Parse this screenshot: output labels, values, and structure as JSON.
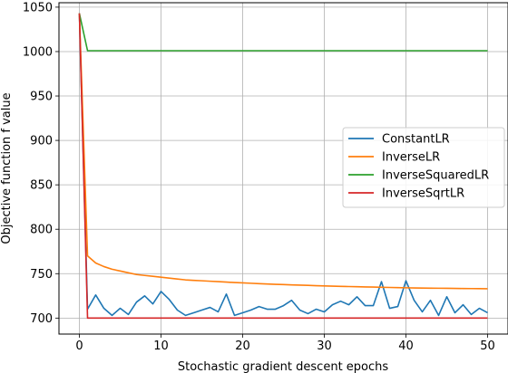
{
  "chart_data": {
    "type": "line",
    "title": "",
    "xlabel": "Stochastic gradient descent epochs",
    "ylabel": "Objective function f value",
    "xlim": [
      -2.5,
      52.5
    ],
    "ylim": [
      682,
      1055
    ],
    "xticks": [
      0,
      10,
      20,
      30,
      40,
      50
    ],
    "yticks": [
      700,
      750,
      800,
      850,
      900,
      950,
      1000,
      1050
    ],
    "grid": true,
    "legend_position": "center-right",
    "x": [
      0,
      1,
      2,
      3,
      4,
      5,
      6,
      7,
      8,
      9,
      10,
      11,
      12,
      13,
      14,
      15,
      16,
      17,
      18,
      19,
      20,
      21,
      22,
      23,
      24,
      25,
      26,
      27,
      28,
      29,
      30,
      31,
      32,
      33,
      34,
      35,
      36,
      37,
      38,
      39,
      40,
      41,
      42,
      43,
      44,
      45,
      46,
      47,
      48,
      49,
      50
    ],
    "series": [
      {
        "name": "ConstantLR",
        "color": "#1f77b4",
        "values": [
          1043,
          710,
          726,
          711,
          703,
          711,
          704,
          718,
          725,
          716,
          730,
          721,
          709,
          703,
          706,
          709,
          712,
          707,
          727,
          703,
          706,
          709,
          713,
          710,
          710,
          714,
          720,
          709,
          705,
          710,
          707,
          715,
          719,
          715,
          724,
          714,
          714,
          741,
          711,
          713,
          742,
          720,
          707,
          720,
          703,
          724,
          706,
          715,
          704,
          711,
          706
        ]
      },
      {
        "name": "InverseLR",
        "color": "#ff7f0e",
        "values": [
          1043,
          770,
          762,
          758,
          755,
          753,
          751,
          749,
          748,
          747,
          746,
          745,
          744,
          743,
          742.5,
          742,
          741.5,
          741,
          740.5,
          740,
          739.6,
          739.2,
          738.8,
          738.4,
          738,
          737.7,
          737.4,
          737.1,
          736.8,
          736.5,
          736.2,
          735.9,
          735.7,
          735.5,
          735.3,
          735.1,
          734.9,
          734.7,
          734.5,
          734.3,
          734.1,
          733.9,
          733.8,
          733.7,
          733.6,
          733.5,
          733.4,
          733.3,
          733.2,
          733.1,
          733
        ]
      },
      {
        "name": "InverseSquaredLR",
        "color": "#2ca02c",
        "values": [
          1043,
          1001,
          1001,
          1001,
          1001,
          1001,
          1001,
          1001,
          1001,
          1001,
          1001,
          1001,
          1001,
          1001,
          1001,
          1001,
          1001,
          1001,
          1001,
          1001,
          1001,
          1001,
          1001,
          1001,
          1001,
          1001,
          1001,
          1001,
          1001,
          1001,
          1001,
          1001,
          1001,
          1001,
          1001,
          1001,
          1001,
          1001,
          1001,
          1001,
          1001,
          1001,
          1001,
          1001,
          1001,
          1001,
          1001,
          1001,
          1001,
          1001,
          1001
        ]
      },
      {
        "name": "InverseSqrtLR",
        "color": "#d62728",
        "values": [
          1043,
          700,
          700,
          700,
          700,
          700,
          700,
          700,
          700,
          700,
          700,
          700,
          700,
          700,
          700,
          700,
          700,
          700,
          700,
          700,
          700,
          700,
          700,
          700,
          700,
          700,
          700,
          700,
          700,
          700,
          700,
          700,
          700,
          700,
          700,
          700,
          700,
          700,
          700,
          700,
          700,
          700,
          700,
          700,
          700,
          700,
          700,
          700,
          700,
          700,
          700
        ]
      }
    ]
  }
}
